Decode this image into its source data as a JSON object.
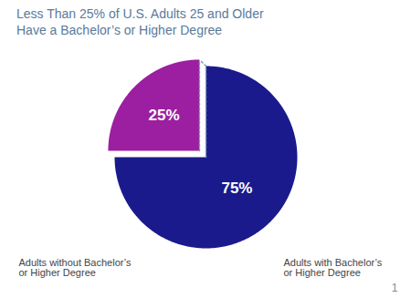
{
  "chart_data": {
    "type": "pie",
    "title": "Less Than 25% of U.S. Adults 25 and Older\nHave a Bachelor’s or Higher Degree",
    "categories": [
      "Adults without Bachelor’s\nor Higher Degree",
      "Adults with Bachelor’s\nor Higher Degree"
    ],
    "values": [
      75,
      25
    ],
    "value_labels": [
      "75%",
      "25%"
    ],
    "data_labels": true,
    "colors": [
      "#1a1a8c",
      "#9b1fa0"
    ],
    "annotations": [
      "1"
    ]
  }
}
